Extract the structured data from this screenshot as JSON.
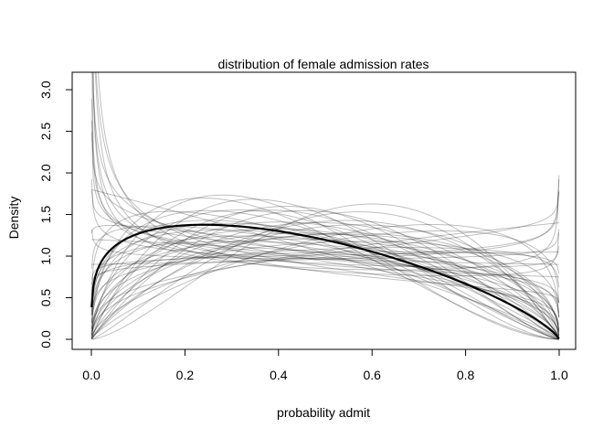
{
  "chart_data": {
    "type": "line",
    "title": "distribution of female admission rates",
    "xlabel": "probability admit",
    "ylabel": "Density",
    "xlim": [
      0,
      1
    ],
    "ylim": [
      0,
      3.1
    ],
    "x_ticks": [
      "0.0",
      "0.2",
      "0.4",
      "0.6",
      "0.8",
      "1.0"
    ],
    "y_ticks": [
      "0.0",
      "0.5",
      "1.0",
      "1.5",
      "2.0",
      "2.5",
      "3.0"
    ],
    "grid": false,
    "mean_curve": {
      "distribution": "beta",
      "alpha": 1.24,
      "beta": 1.76,
      "color": "#000000"
    },
    "sample_curves": {
      "distribution": "beta",
      "color": "#000000",
      "opacity": 0.25,
      "params": [
        [
          0.62,
          1.05
        ],
        [
          0.7,
          1.2
        ],
        [
          0.75,
          1.0
        ],
        [
          0.8,
          1.3
        ],
        [
          0.85,
          1.1
        ],
        [
          0.65,
          0.9
        ],
        [
          0.72,
          0.85
        ],
        [
          0.9,
          1.4
        ],
        [
          1.0,
          1.8
        ],
        [
          1.1,
          1.6
        ],
        [
          1.2,
          2.0
        ],
        [
          1.3,
          1.9
        ],
        [
          1.4,
          2.2
        ],
        [
          1.5,
          2.6
        ],
        [
          1.6,
          2.3
        ],
        [
          1.7,
          2.8
        ],
        [
          1.25,
          1.5
        ],
        [
          1.45,
          1.7
        ],
        [
          1.6,
          1.9
        ],
        [
          1.8,
          2.3
        ],
        [
          1.9,
          2.7
        ],
        [
          2.0,
          2.4
        ],
        [
          1.75,
          1.8
        ],
        [
          1.9,
          1.75
        ],
        [
          2.0,
          2.2
        ],
        [
          1.5,
          1.45
        ],
        [
          1.05,
          1.0
        ],
        [
          1.1,
          1.05
        ],
        [
          1.2,
          1.1
        ],
        [
          1.0,
          1.2
        ],
        [
          1.15,
          1.35
        ],
        [
          1.3,
          1.4
        ],
        [
          1.35,
          1.25
        ],
        [
          1.8,
          1.6
        ],
        [
          1.55,
          1.45
        ],
        [
          0.95,
          0.95
        ],
        [
          1.0,
          0.9
        ],
        [
          1.05,
          0.92
        ],
        [
          0.9,
          1.0
        ],
        [
          1.4,
          1.0
        ],
        [
          1.3,
          0.95
        ],
        [
          1.6,
          1.2
        ],
        [
          1.8,
          1.3
        ],
        [
          2.2,
          1.9
        ],
        [
          2.5,
          2.0
        ],
        [
          1.45,
          1.55
        ],
        [
          1.25,
          1.65
        ],
        [
          1.35,
          1.85
        ],
        [
          0.8,
          0.95
        ],
        [
          0.88,
          1.15
        ],
        [
          0.95,
          1.3
        ],
        [
          1.02,
          1.45
        ]
      ]
    }
  }
}
